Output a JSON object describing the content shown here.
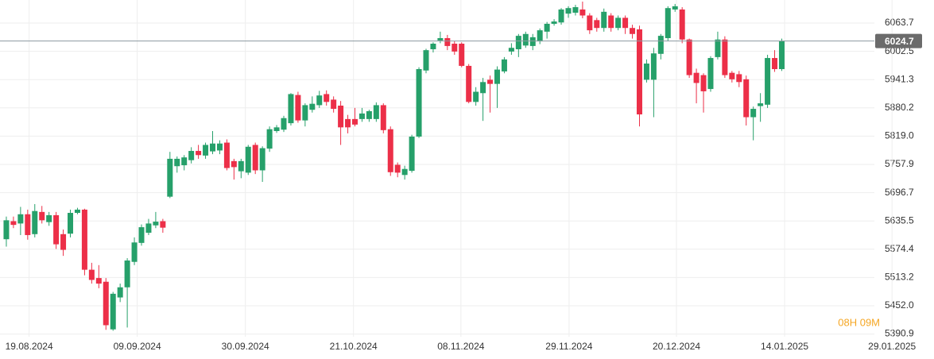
{
  "chart_data": {
    "type": "candlestick",
    "open": [
      5596,
      5635,
      5630,
      5650,
      5607,
      5655,
      5633,
      5648,
      5607,
      5608,
      5653,
      5660,
      5530,
      5512,
      5504,
      5401,
      5470,
      5492,
      5547,
      5588,
      5610,
      5626,
      5635,
      5688,
      5754,
      5756,
      5767,
      5787,
      5777,
      5786,
      5788,
      5805,
      5765,
      5743,
      5740,
      5800,
      5745,
      5792,
      5830,
      5833,
      5847,
      5908,
      5853,
      5876,
      5886,
      5910,
      5898,
      5885,
      5856,
      5856,
      5856,
      5856,
      5856,
      5886,
      5834,
      5757,
      5735,
      5744,
      5818,
      5961,
      6007,
      6026,
      6031,
      6019,
      6019,
      5971,
      5893,
      5912,
      5941,
      5932,
      5959,
      6002,
      6007,
      6015,
      6014,
      6024,
      6045,
      6062,
      6065,
      6084,
      6086,
      6093,
      6080,
      6070,
      6053,
      6080,
      6053,
      6075,
      6053,
      6050,
      5941,
      5941,
      5997,
      6031,
      6093,
      6093,
      6028,
      5956,
      5951,
      5921,
      5990,
      6028,
      5956,
      5953,
      5942,
      5860,
      5884,
      5887,
      5988,
      5964
    ],
    "high": [
      5645,
      5645,
      5666,
      5660,
      5672,
      5668,
      5655,
      5655,
      5617,
      5660,
      5664,
      5662,
      5545,
      5540,
      5512,
      5482,
      5500,
      5555,
      5600,
      5628,
      5640,
      5655,
      5640,
      5785,
      5775,
      5778,
      5795,
      5800,
      5805,
      5830,
      5810,
      5812,
      5770,
      5770,
      5800,
      5805,
      5797,
      5840,
      5843,
      5863,
      5912,
      5915,
      5890,
      5905,
      5917,
      5918,
      5905,
      5895,
      5865,
      5880,
      5880,
      5876,
      5892,
      5890,
      5840,
      5762,
      5755,
      5822,
      5968,
      6008,
      6022,
      6045,
      6038,
      6025,
      6022,
      5975,
      5925,
      5945,
      5950,
      5970,
      5990,
      6020,
      6040,
      6045,
      6040,
      6052,
      6066,
      6072,
      6096,
      6100,
      6103,
      6110,
      6085,
      6075,
      6095,
      6085,
      6080,
      6080,
      6060,
      6058,
      5985,
      6010,
      6040,
      6100,
      6105,
      6098,
      6030,
      5965,
      5955,
      5992,
      6045,
      6035,
      5960,
      5960,
      5950,
      5883,
      5912,
      5995,
      6005,
      6030
    ],
    "low": [
      5580,
      5620,
      5605,
      5595,
      5600,
      5630,
      5625,
      5575,
      5560,
      5600,
      5650,
      5518,
      5500,
      5490,
      5400,
      5398,
      5460,
      5405,
      5540,
      5582,
      5605,
      5620,
      5610,
      5685,
      5740,
      5745,
      5760,
      5770,
      5770,
      5780,
      5780,
      5745,
      5725,
      5728,
      5735,
      5737,
      5720,
      5785,
      5826,
      5828,
      5842,
      5848,
      5840,
      5870,
      5880,
      5885,
      5870,
      5800,
      5825,
      5840,
      5850,
      5850,
      5850,
      5825,
      5733,
      5730,
      5725,
      5740,
      5815,
      5955,
      6000,
      6020,
      6005,
      5995,
      5968,
      5890,
      5885,
      5852,
      5870,
      5880,
      5955,
      5995,
      5990,
      6010,
      6005,
      6018,
      6030,
      6058,
      6060,
      6075,
      6080,
      6074,
      6040,
      6045,
      6045,
      6045,
      6048,
      6040,
      6030,
      5840,
      5935,
      5860,
      5985,
      6025,
      6088,
      6020,
      5945,
      5890,
      5870,
      5915,
      5985,
      5945,
      5935,
      5925,
      5842,
      5810,
      5850,
      5880,
      5958,
      5960
    ],
    "close": [
      5637,
      5627,
      5650,
      5605,
      5657,
      5637,
      5648,
      5585,
      5573,
      5653,
      5660,
      5530,
      5508,
      5500,
      5410,
      5478,
      5492,
      5550,
      5589,
      5622,
      5630,
      5634,
      5621,
      5770,
      5770,
      5773,
      5787,
      5778,
      5800,
      5803,
      5803,
      5750,
      5752,
      5765,
      5796,
      5745,
      5793,
      5834,
      5838,
      5858,
      5910,
      5853,
      5886,
      5889,
      5907,
      5893,
      5878,
      5838,
      5838,
      5844,
      5868,
      5873,
      5886,
      5832,
      5741,
      5740,
      5748,
      5818,
      5964,
      6005,
      6019,
      6031,
      6014,
      6002,
      5971,
      5893,
      5915,
      5936,
      5932,
      5963,
      5985,
      6010,
      6036,
      6040,
      6033,
      6048,
      6062,
      6067,
      6093,
      6096,
      6098,
      6080,
      6048,
      6053,
      6088,
      6053,
      6075,
      6053,
      6040,
      5866,
      5976,
      5998,
      6036,
      6096,
      6100,
      6028,
      5951,
      5934,
      5916,
      5988,
      6028,
      5951,
      5942,
      5936,
      5860,
      5878,
      5890,
      5988,
      5964,
      6024.7
    ],
    "up_color": "#26a06a",
    "down_color": "#ec2f48",
    "last_price": 6024.7,
    "countdown": "08H 09M",
    "ylim": [
      5385,
      6113.5
    ],
    "yticks": [
      6063.7,
      6002.5,
      5941.3,
      5880.2,
      {
        "value": 5819.0,
        "label": "5819.0"
      },
      5757.9,
      5696.7,
      5635.5,
      5574.4,
      5513.2,
      {
        "value": 5452.0,
        "label": "5452.0"
      },
      5390.9
    ],
    "xlim": [
      -0.89,
      130.4
    ],
    "xticks": [
      {
        "value": 3.2,
        "label": "19.08.2024"
      },
      {
        "value": 18.4,
        "label": "09.09.2024"
      },
      {
        "value": 33.6,
        "label": "30.09.2024"
      },
      {
        "value": 48.8,
        "label": "21.10.2024"
      },
      {
        "value": 63.9,
        "label": "08.11.2024"
      },
      {
        "value": 79.1,
        "label": "29.11.2024"
      },
      {
        "value": 94.2,
        "label": "20.12.2024"
      },
      {
        "value": 109.4,
        "label": "14.01.2025"
      },
      {
        "value": 124.5,
        "label": "29.01.2025"
      }
    ],
    "grid": true
  }
}
